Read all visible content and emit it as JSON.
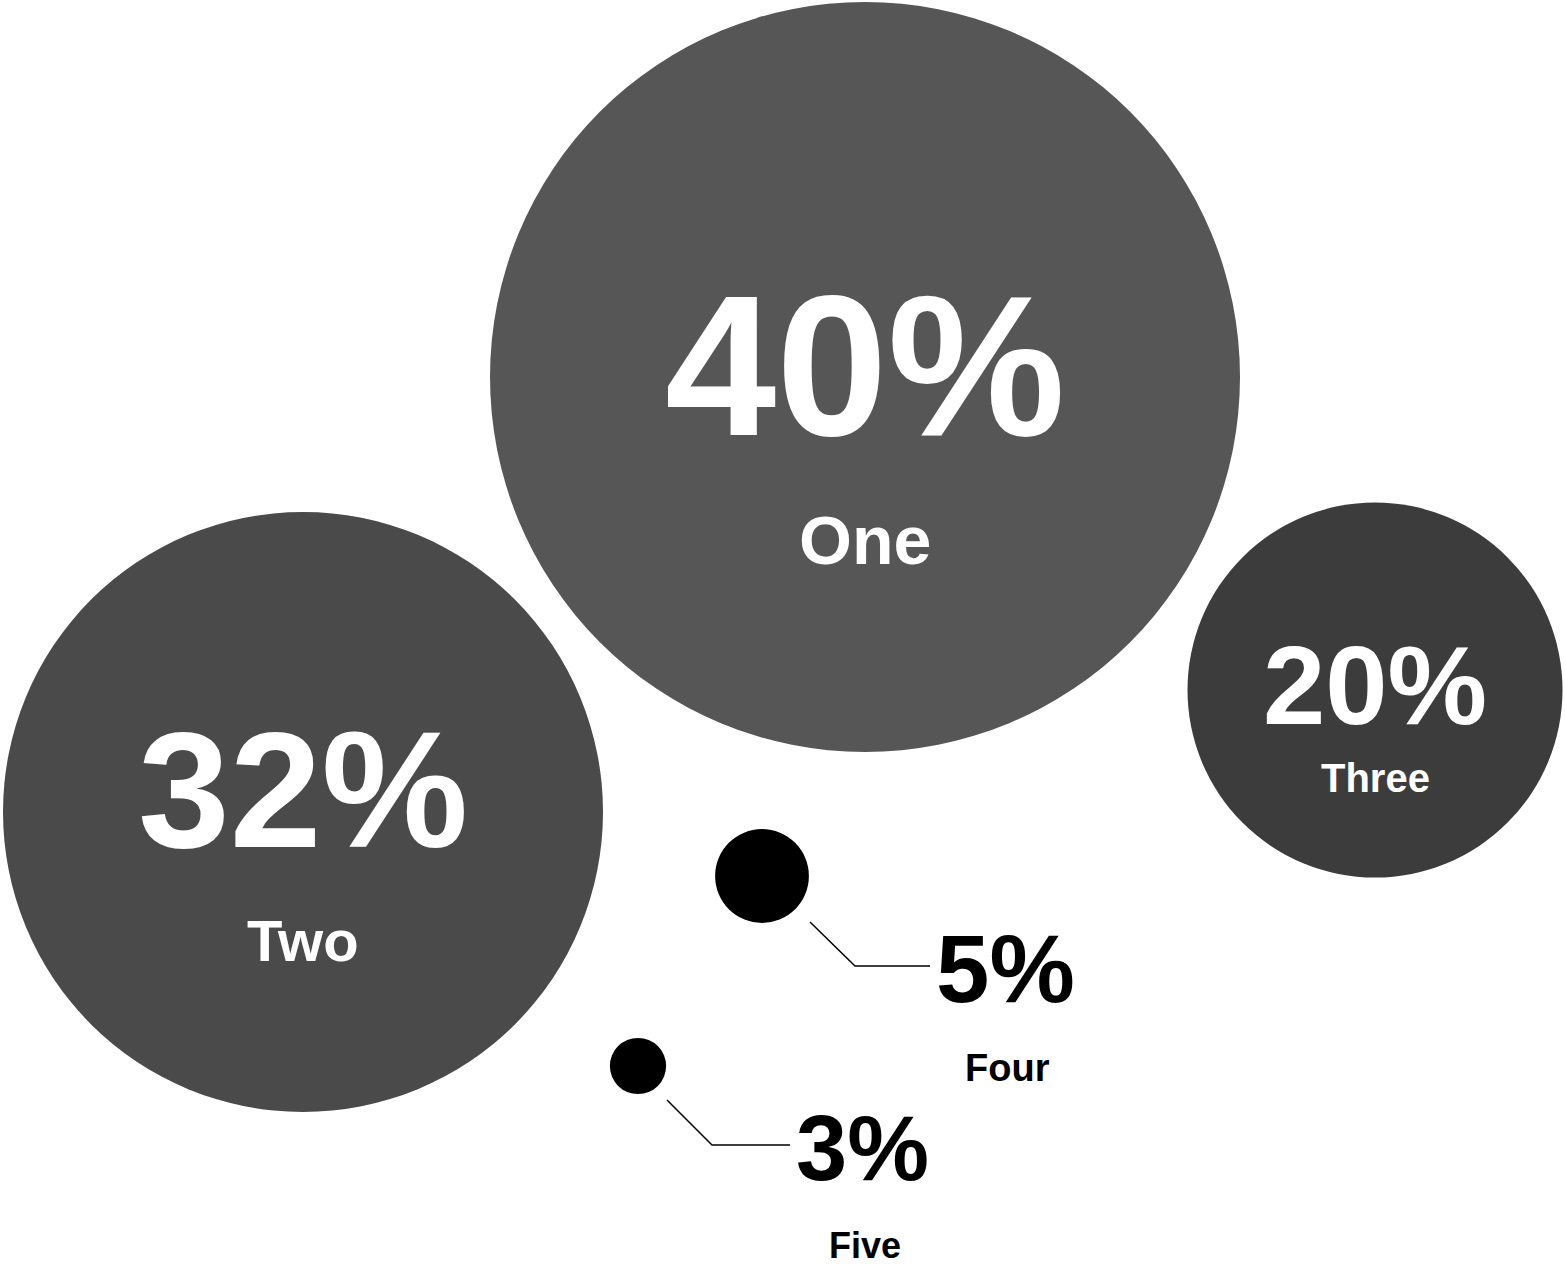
{
  "chart_data": {
    "type": "bubble",
    "categories": [
      "One",
      "Two",
      "Three",
      "Four",
      "Five"
    ],
    "values": [
      40,
      32,
      20,
      5,
      3
    ],
    "value_labels": [
      "40%",
      "32%",
      "20%",
      "5%",
      "3%"
    ],
    "colors": [
      "#565656",
      "#4a4a4a",
      "#3c3c3c",
      "#000000",
      "#000000"
    ],
    "data_labels": true,
    "tick_labels": false
  }
}
